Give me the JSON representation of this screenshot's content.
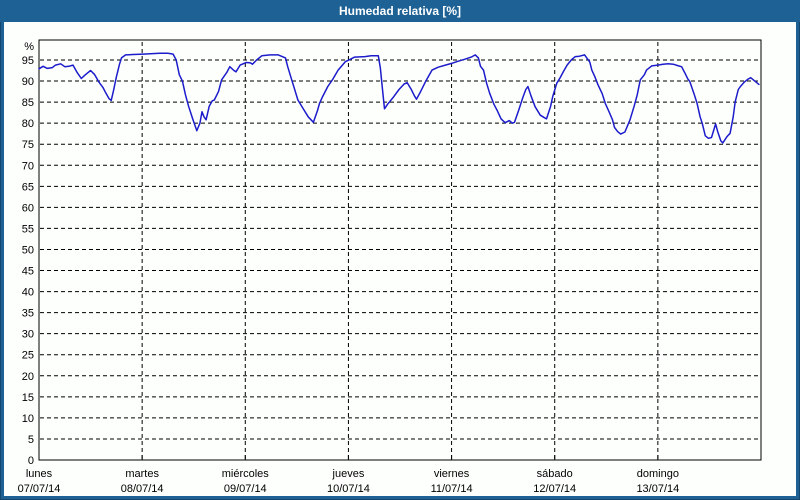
{
  "window": {
    "title": "Humedad relativa [%]"
  },
  "colors": {
    "frame_blue": "#1e6295",
    "panel_bg": "#fdfffd",
    "axis_black": "#000000",
    "line_blue": "#1c1ccb"
  },
  "chart_data": {
    "type": "line",
    "title": "Humedad relativa [%]",
    "xlabel": "",
    "ylabel": "%",
    "ylim": [
      0,
      100
    ],
    "xlim_days": [
      0,
      7
    ],
    "grid": "dashed",
    "legend": "none",
    "y_ticks": [
      0,
      5,
      10,
      15,
      20,
      25,
      30,
      35,
      40,
      45,
      50,
      55,
      60,
      65,
      70,
      75,
      80,
      85,
      90,
      95
    ],
    "x_days": [
      {
        "name": "lunes",
        "date": "07/07/14"
      },
      {
        "name": "martes",
        "date": "08/07/14"
      },
      {
        "name": "miércoles",
        "date": "09/07/14"
      },
      {
        "name": "jueves",
        "date": "10/07/14"
      },
      {
        "name": "viernes",
        "date": "11/07/14"
      },
      {
        "name": "sábado",
        "date": "12/07/14"
      },
      {
        "name": "domingo",
        "date": "13/07/14"
      }
    ],
    "series": [
      {
        "name": "Humedad relativa",
        "color": "#1c1ccb",
        "unit": "%",
        "points": [
          [
            0.0,
            92.9
          ],
          [
            0.04,
            93.5
          ],
          [
            0.08,
            93.0
          ],
          [
            0.13,
            93.2
          ],
          [
            0.16,
            93.8
          ],
          [
            0.21,
            94.1
          ],
          [
            0.25,
            93.4
          ],
          [
            0.29,
            93.5
          ],
          [
            0.33,
            93.8
          ],
          [
            0.37,
            92.0
          ],
          [
            0.41,
            90.6
          ],
          [
            0.45,
            91.5
          ],
          [
            0.5,
            92.5
          ],
          [
            0.54,
            91.5
          ],
          [
            0.58,
            89.8
          ],
          [
            0.62,
            88.5
          ],
          [
            0.65,
            87.1
          ],
          [
            0.68,
            85.8
          ],
          [
            0.7,
            85.4
          ],
          [
            0.72,
            87.5
          ],
          [
            0.75,
            91.0
          ],
          [
            0.78,
            94.0
          ],
          [
            0.8,
            95.5
          ],
          [
            0.84,
            96.2
          ],
          [
            0.91,
            96.3
          ],
          [
            1.01,
            96.4
          ],
          [
            1.08,
            96.5
          ],
          [
            1.17,
            96.6
          ],
          [
            1.25,
            96.6
          ],
          [
            1.3,
            96.4
          ],
          [
            1.33,
            95.0
          ],
          [
            1.36,
            91.5
          ],
          [
            1.39,
            90.0
          ],
          [
            1.42,
            86.7
          ],
          [
            1.45,
            84.0
          ],
          [
            1.49,
            81.0
          ],
          [
            1.53,
            78.2
          ],
          [
            1.56,
            80.0
          ],
          [
            1.58,
            82.7
          ],
          [
            1.6,
            81.5
          ],
          [
            1.62,
            80.8
          ],
          [
            1.65,
            84.0
          ],
          [
            1.68,
            85.3
          ],
          [
            1.7,
            85.5
          ],
          [
            1.74,
            87.5
          ],
          [
            1.77,
            90.3
          ],
          [
            1.82,
            92.0
          ],
          [
            1.85,
            93.4
          ],
          [
            1.89,
            92.5
          ],
          [
            1.91,
            92.2
          ],
          [
            1.95,
            93.8
          ],
          [
            2.01,
            94.4
          ],
          [
            2.05,
            94.3
          ],
          [
            2.07,
            94.0
          ],
          [
            2.11,
            95.0
          ],
          [
            2.16,
            96.0
          ],
          [
            2.24,
            96.2
          ],
          [
            2.32,
            96.2
          ],
          [
            2.39,
            95.5
          ],
          [
            2.41,
            93.5
          ],
          [
            2.45,
            90.3
          ],
          [
            2.51,
            85.5
          ],
          [
            2.56,
            83.5
          ],
          [
            2.61,
            81.5
          ],
          [
            2.66,
            80.2
          ],
          [
            2.7,
            83.0
          ],
          [
            2.72,
            84.7
          ],
          [
            2.75,
            86.3
          ],
          [
            2.8,
            88.7
          ],
          [
            2.85,
            90.5
          ],
          [
            2.9,
            92.6
          ],
          [
            2.97,
            94.6
          ],
          [
            3.02,
            95.2
          ],
          [
            3.06,
            95.7
          ],
          [
            3.16,
            95.8
          ],
          [
            3.22,
            96.0
          ],
          [
            3.29,
            96.0
          ],
          [
            3.31,
            93.0
          ],
          [
            3.33,
            88.0
          ],
          [
            3.35,
            83.4
          ],
          [
            3.38,
            84.5
          ],
          [
            3.43,
            86.0
          ],
          [
            3.49,
            88.0
          ],
          [
            3.54,
            89.3
          ],
          [
            3.57,
            89.6
          ],
          [
            3.61,
            88.0
          ],
          [
            3.64,
            86.5
          ],
          [
            3.66,
            85.7
          ],
          [
            3.7,
            87.5
          ],
          [
            3.75,
            90.0
          ],
          [
            3.81,
            92.6
          ],
          [
            3.87,
            93.3
          ],
          [
            3.94,
            93.8
          ],
          [
            4.0,
            94.2
          ],
          [
            4.06,
            94.7
          ],
          [
            4.13,
            95.2
          ],
          [
            4.19,
            95.7
          ],
          [
            4.23,
            96.2
          ],
          [
            4.26,
            95.5
          ],
          [
            4.28,
            93.5
          ],
          [
            4.31,
            92.6
          ],
          [
            4.34,
            89.5
          ],
          [
            4.37,
            87.1
          ],
          [
            4.41,
            84.5
          ],
          [
            4.44,
            83.1
          ],
          [
            4.48,
            81.0
          ],
          [
            4.52,
            80.1
          ],
          [
            4.56,
            80.6
          ],
          [
            4.59,
            80.0
          ],
          [
            4.61,
            80.2
          ],
          [
            4.65,
            83.0
          ],
          [
            4.69,
            86.0
          ],
          [
            4.72,
            88.0
          ],
          [
            4.74,
            88.7
          ],
          [
            4.77,
            86.5
          ],
          [
            4.81,
            83.9
          ],
          [
            4.86,
            81.9
          ],
          [
            4.9,
            81.3
          ],
          [
            4.92,
            81.0
          ],
          [
            4.96,
            84.0
          ],
          [
            4.98,
            86.3
          ],
          [
            5.02,
            89.5
          ],
          [
            5.05,
            90.7
          ],
          [
            5.09,
            92.5
          ],
          [
            5.12,
            93.8
          ],
          [
            5.16,
            95.0
          ],
          [
            5.2,
            95.8
          ],
          [
            5.24,
            95.9
          ],
          [
            5.29,
            96.2
          ],
          [
            5.34,
            94.5
          ],
          [
            5.36,
            92.6
          ],
          [
            5.39,
            91.0
          ],
          [
            5.42,
            89.1
          ],
          [
            5.46,
            87.0
          ],
          [
            5.49,
            84.7
          ],
          [
            5.53,
            82.5
          ],
          [
            5.56,
            80.8
          ],
          [
            5.58,
            79.0
          ],
          [
            5.61,
            78.0
          ],
          [
            5.64,
            77.4
          ],
          [
            5.68,
            77.9
          ],
          [
            5.73,
            80.8
          ],
          [
            5.77,
            84.0
          ],
          [
            5.8,
            86.7
          ],
          [
            5.83,
            90.3
          ],
          [
            5.87,
            91.5
          ],
          [
            5.89,
            92.6
          ],
          [
            5.94,
            93.6
          ],
          [
            6.0,
            93.8
          ],
          [
            6.05,
            94.0
          ],
          [
            6.1,
            94.1
          ],
          [
            6.15,
            94.0
          ],
          [
            6.2,
            93.6
          ],
          [
            6.23,
            93.4
          ],
          [
            6.26,
            92.0
          ],
          [
            6.29,
            90.5
          ],
          [
            6.31,
            89.9
          ],
          [
            6.35,
            87.0
          ],
          [
            6.38,
            84.7
          ],
          [
            6.41,
            81.5
          ],
          [
            6.43,
            80.0
          ],
          [
            6.46,
            77.0
          ],
          [
            6.49,
            76.4
          ],
          [
            6.52,
            76.6
          ],
          [
            6.56,
            79.8
          ],
          [
            6.58,
            78.0
          ],
          [
            6.61,
            75.8
          ],
          [
            6.63,
            75.3
          ],
          [
            6.67,
            76.8
          ],
          [
            6.7,
            77.6
          ],
          [
            6.73,
            81.5
          ],
          [
            6.75,
            85.1
          ],
          [
            6.78,
            88.0
          ],
          [
            6.8,
            88.7
          ],
          [
            6.84,
            89.8
          ],
          [
            6.87,
            90.4
          ],
          [
            6.9,
            90.8
          ],
          [
            6.94,
            90.0
          ],
          [
            6.98,
            89.2
          ]
        ]
      }
    ]
  }
}
